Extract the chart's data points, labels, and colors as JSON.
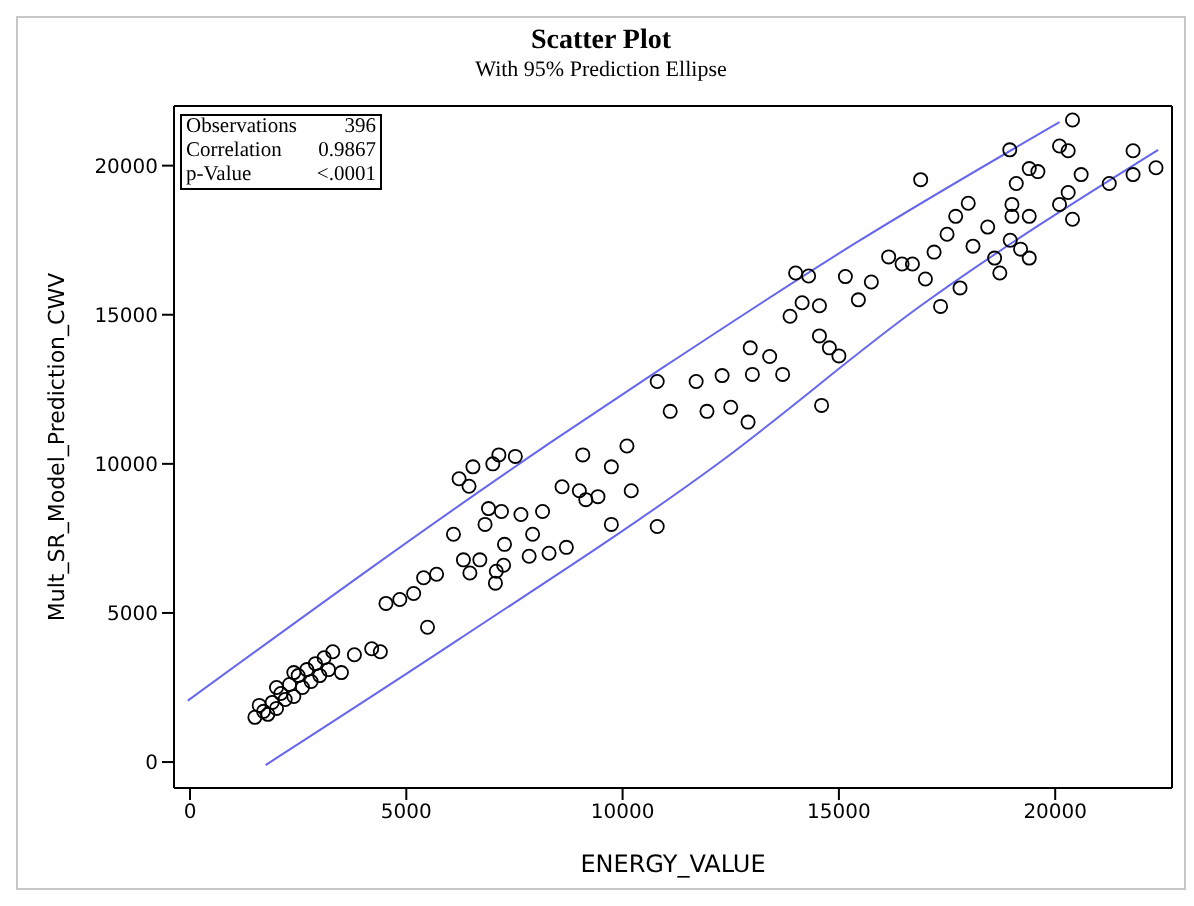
{
  "chart_data": {
    "type": "scatter",
    "title": "Scatter Plot",
    "subtitle": "With 95% Prediction Ellipse",
    "xlabel": "ENERGY_VALUE",
    "ylabel": "Mult_SR_Model_Prediction_CWV",
    "annotations": [
      "Observations 396",
      "Correlation 0.9867",
      "p-Value <.0001"
    ],
    "xlim": [
      -370,
      22700
    ],
    "ylim": [
      -870,
      22000
    ],
    "xticks": [
      0,
      5000,
      10000,
      15000,
      20000
    ],
    "yticks": [
      0,
      5000,
      10000,
      15000,
      20000
    ],
    "series": [
      {
        "marker": "circle",
        "color": "#000000",
        "x": [
          1500,
          1700,
          1800,
          1900,
          2000,
          2100,
          2200,
          2300,
          2400,
          2500,
          2600,
          2700,
          2800,
          2900,
          3000,
          3100,
          3200,
          3300,
          2000,
          2400,
          1600,
          3500,
          3800,
          4200,
          4400,
          4530,
          4850,
          5170,
          5400,
          5700,
          5490,
          6090,
          6220,
          6450,
          6540,
          7000,
          7140,
          7520,
          6320,
          6470,
          6700,
          7060,
          7080,
          7250,
          7270,
          6820,
          6900,
          7200,
          7650,
          7920,
          8150,
          7840,
          8300,
          8700,
          8600,
          9000,
          9150,
          9430,
          9740,
          9740,
          10200,
          10800,
          9080,
          10100,
          10800,
          11100,
          11700,
          11950,
          12300,
          12500,
          12900,
          12950,
          13000,
          13400,
          13700,
          13870,
          14000,
          14300,
          14150,
          14550,
          14550,
          14780,
          14600,
          15000,
          15150,
          15450,
          15750,
          16150,
          16460,
          16700,
          16890,
          17000,
          17200,
          17350,
          17500,
          17700,
          17990,
          17800,
          18100,
          18440,
          18600,
          18720,
          18960,
          19000,
          19000,
          19100,
          19200,
          19400,
          19400,
          18950,
          19400,
          19600,
          20100,
          20300,
          20100,
          20300,
          20400,
          20600,
          20400,
          21250,
          21800,
          21800,
          22330
        ],
        "values": [
          1500,
          1700,
          1600,
          2000,
          1800,
          2300,
          2100,
          2600,
          2200,
          2900,
          2500,
          3100,
          2700,
          3300,
          2900,
          3500,
          3100,
          3700,
          2500,
          3000,
          1900,
          3000,
          3600,
          3800,
          3700,
          5320,
          5450,
          5650,
          6180,
          6300,
          4520,
          7640,
          9500,
          9250,
          9900,
          10000,
          10300,
          10250,
          6780,
          6340,
          6780,
          6000,
          6400,
          6600,
          7300,
          7970,
          8500,
          8400,
          8300,
          7640,
          8400,
          6900,
          7000,
          7200,
          9230,
          9100,
          8800,
          8900,
          9900,
          7970,
          9100,
          7900,
          10300,
          10600,
          12760,
          11760,
          12760,
          11760,
          12960,
          11900,
          11400,
          13890,
          13000,
          13600,
          13000,
          14950,
          16400,
          16300,
          15400,
          15300,
          14290,
          13890,
          11960,
          13620,
          16280,
          15500,
          16100,
          16940,
          16700,
          16700,
          19530,
          16200,
          17100,
          15280,
          17700,
          18300,
          18740,
          15900,
          17300,
          17940,
          16900,
          16400,
          17500,
          18700,
          18300,
          19400,
          17200,
          18300,
          16900,
          20530,
          19900,
          19800,
          20660,
          20500,
          18700,
          19100,
          18200,
          19700,
          21530,
          19400,
          19700,
          20500,
          19930
        ]
      },
      {
        "type": "line",
        "marker": "none",
        "color": "#6666ee",
        "x": [
          -50,
          8380,
          10900,
          15380,
          20100
        ],
        "values": [
          2060,
          10760,
          13200,
          17400,
          21460
        ]
      },
      {
        "type": "line",
        "marker": "none",
        "color": "#6666ee",
        "x": [
          1750,
          6220,
          12170,
          16890,
          22380
        ],
        "values": [
          -100,
          4120,
          9970,
          15300,
          20530
        ]
      }
    ]
  }
}
